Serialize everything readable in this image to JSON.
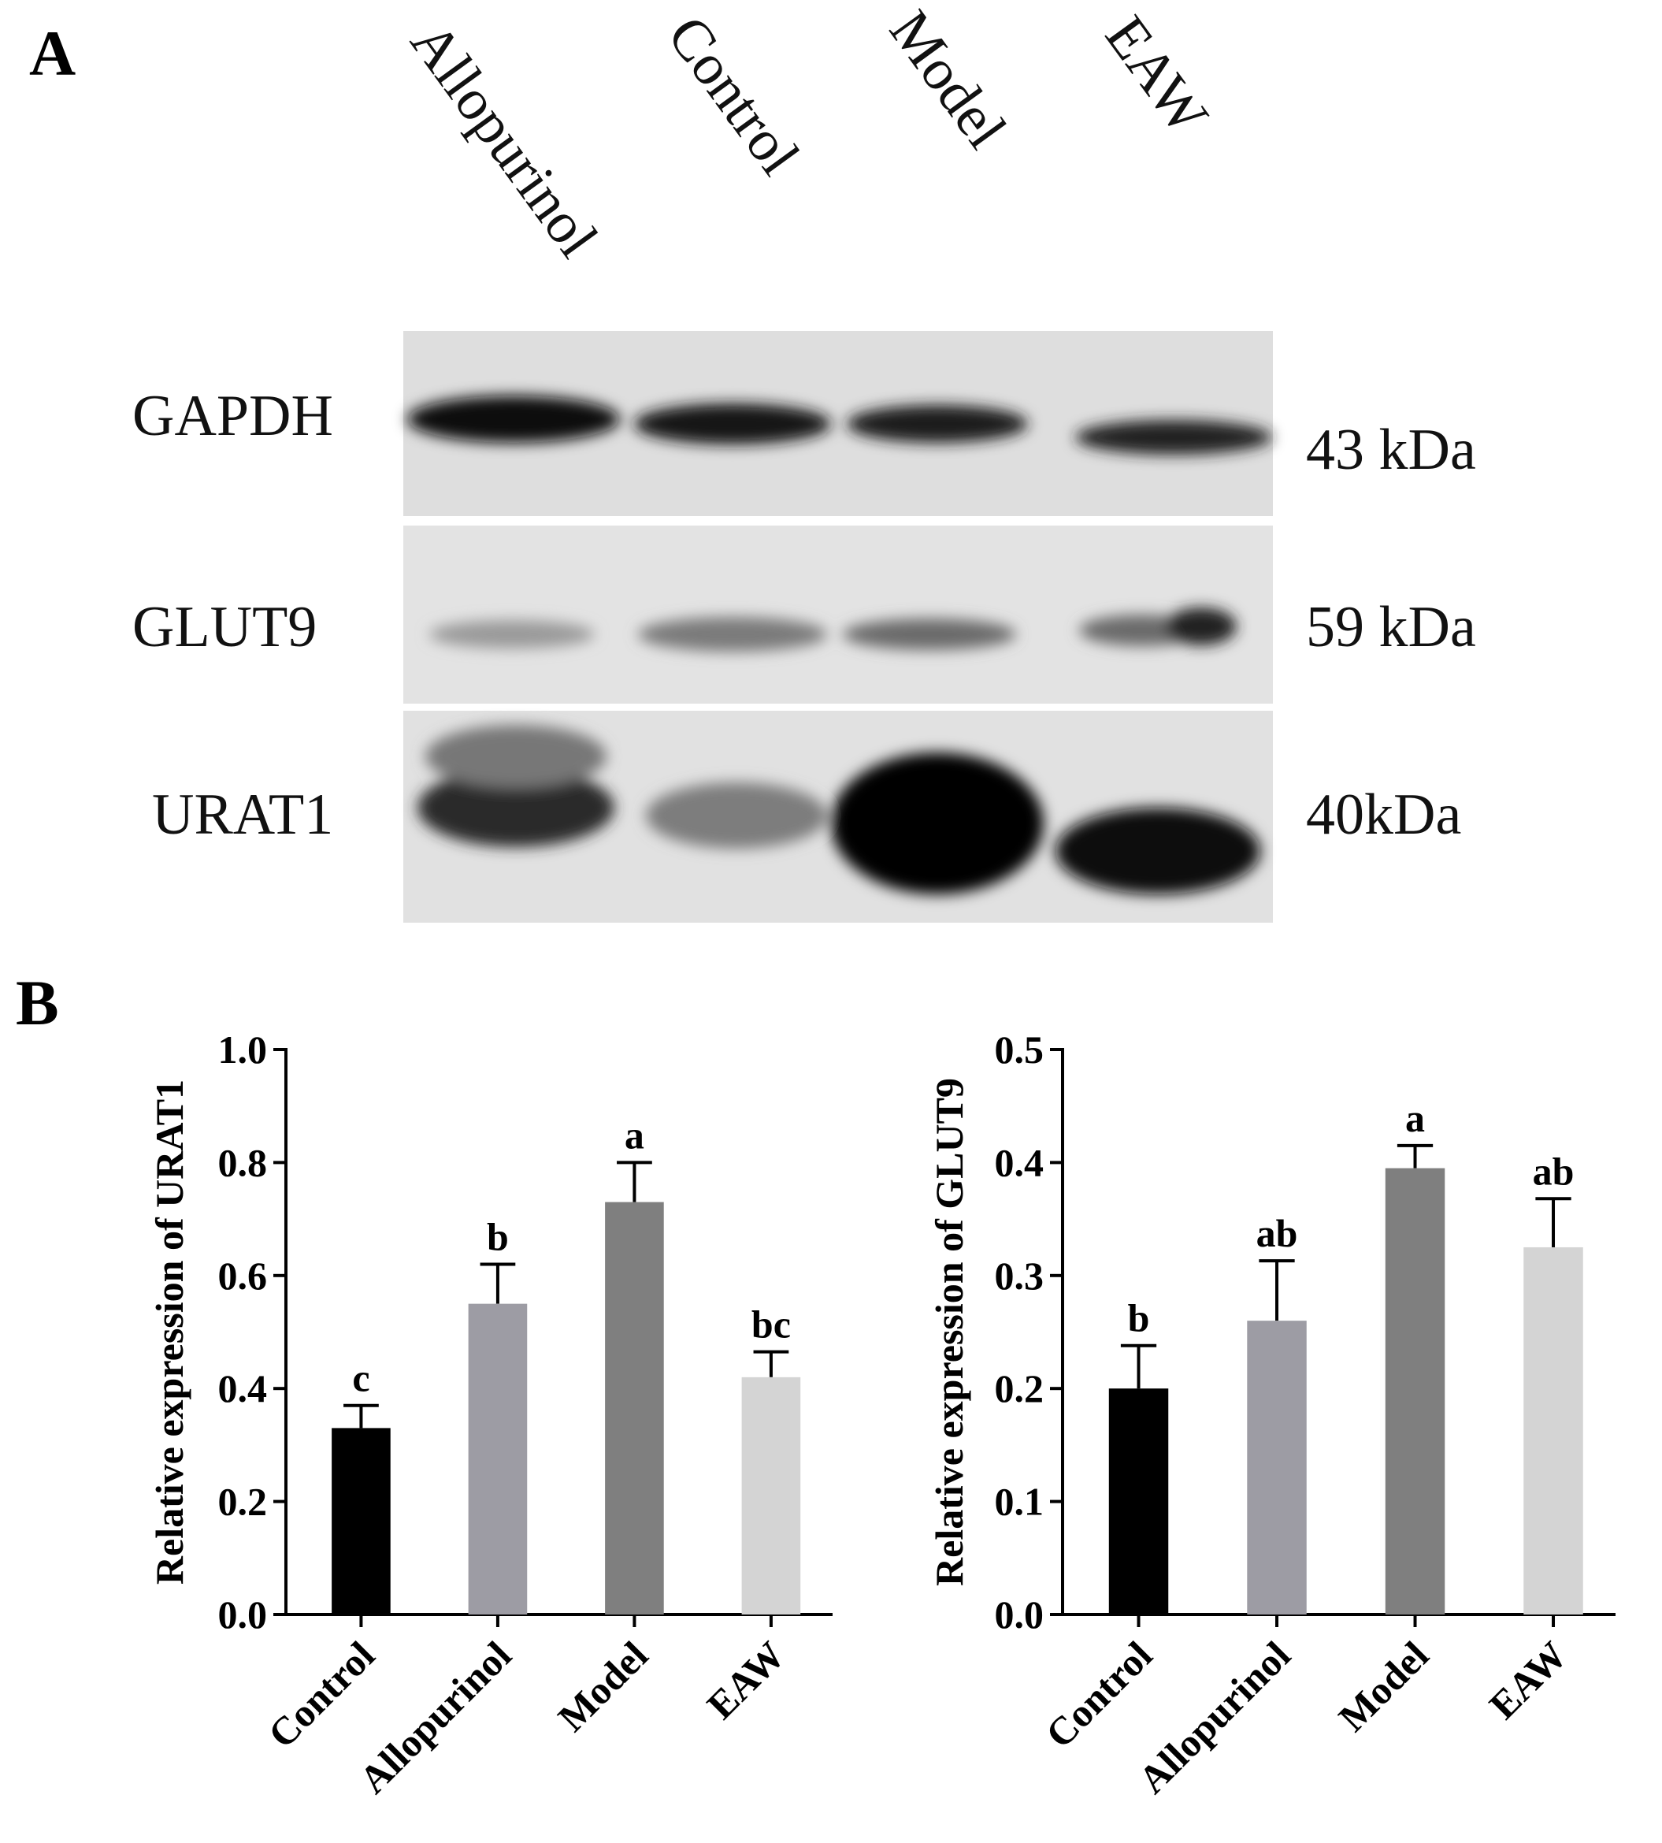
{
  "panel_labels": [
    "A",
    "B"
  ],
  "blot": {
    "lanes": [
      "Allopurinol",
      "Control",
      "Model",
      "EAW"
    ],
    "proteins": [
      {
        "name": "GAPDH",
        "size": "43 kDa"
      },
      {
        "name": "GLUT9",
        "size": "59 kDa"
      },
      {
        "name": "URAT1",
        "size": "40kDa"
      }
    ]
  },
  "chart_data": [
    {
      "type": "bar",
      "y_label": "Relative expression of URAT1",
      "categories": [
        "Control",
        "Allopurinol",
        "Model",
        "EAW"
      ],
      "values": [
        0.33,
        0.55,
        0.73,
        0.42
      ],
      "errors": [
        0.04,
        0.07,
        0.07,
        0.045
      ],
      "annotations": [
        "c",
        "b",
        "a",
        "bc"
      ],
      "colors": [
        "#000000",
        "#9d9ca4",
        "#7f7f7f",
        "#d4d4d4"
      ],
      "ylim": [
        0,
        1
      ],
      "yticks": [
        {
          "value": 0,
          "label": "0.0"
        },
        0.2,
        0.4,
        0.6,
        0.8,
        {
          "value": 1,
          "label": "1.0"
        }
      ]
    },
    {
      "type": "bar",
      "y_label": "Relative expression of GLUT9",
      "categories": [
        "Control",
        "Allopurinol",
        "Model",
        "EAW"
      ],
      "values": [
        0.2,
        0.26,
        0.395,
        0.325
      ],
      "errors": [
        0.038,
        0.053,
        0.02,
        0.043
      ],
      "annotations": [
        "b",
        "ab",
        "a",
        "ab"
      ],
      "colors": [
        "#000000",
        "#9d9ca4",
        "#7f7f7f",
        "#d4d4d4"
      ],
      "ylim": [
        0,
        0.5
      ],
      "yticks": [
        {
          "value": 0,
          "label": "0.0"
        },
        0.1,
        0.2,
        0.3,
        0.4,
        0.5
      ]
    }
  ]
}
